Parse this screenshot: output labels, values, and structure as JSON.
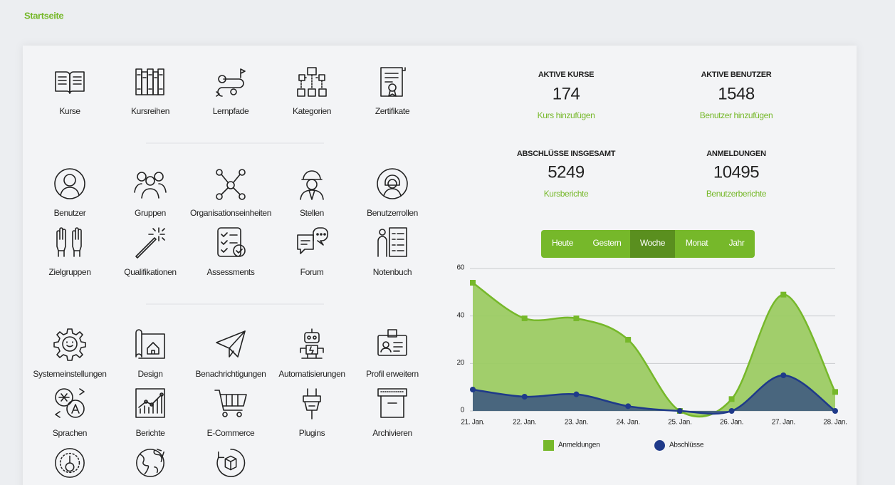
{
  "header": {
    "title": "Startseite"
  },
  "sections": [
    {
      "items": [
        "Kurse",
        "Kursreihen",
        "Lernpfade",
        "Kategorien",
        "Zertifikate"
      ]
    },
    {
      "items": [
        "Benutzer",
        "Gruppen",
        "Organisationseinheiten",
        "Stellen",
        "Benutzerrollen",
        "Zielgruppen",
        "Qualifikationen",
        "Assessments",
        "Forum",
        "Notenbuch"
      ]
    },
    {
      "items": [
        "Systemeinstellungen",
        "Design",
        "Benachrichtigungen",
        "Automatisierungen",
        "Profil erweitern",
        "Sprachen",
        "Berichte",
        "E-Commerce",
        "Plugins",
        "Archivieren"
      ]
    }
  ],
  "stats": [
    {
      "label": "AKTIVE KURSE",
      "value": 174,
      "link": "Kurs hinzufügen"
    },
    {
      "label": "AKTIVE BENUTZER",
      "value": 1548,
      "link": "Benutzer hinzufügen"
    },
    {
      "label": "ABSCHLÜSSE INSGESAMT",
      "value": 5249,
      "link": "Kursberichte"
    },
    {
      "label": "ANMELDUNGEN",
      "value": 10495,
      "link": "Benutzerberichte"
    }
  ],
  "periods": {
    "options": [
      "Heute",
      "Gestern",
      "Woche",
      "Monat",
      "Jahr"
    ],
    "active": 2
  },
  "chart_data": {
    "type": "area",
    "categories": [
      "21. Jan.",
      "22. Jan.",
      "23. Jan.",
      "24. Jan.",
      "25. Jan.",
      "26. Jan.",
      "27. Jan.",
      "28. Jan."
    ],
    "series": [
      {
        "name": "Anmeldungen",
        "color": "#76b82a",
        "fill": "#9ccb63",
        "marker": "square",
        "values": [
          54,
          39,
          39,
          30,
          0,
          5,
          49,
          8
        ]
      },
      {
        "name": "Abschlüsse",
        "color": "#1f3a8a",
        "fill": "#45607f",
        "marker": "circle",
        "values": [
          9,
          6,
          7,
          2,
          0,
          0,
          15,
          0
        ]
      }
    ],
    "ylim": [
      0,
      60
    ],
    "yticks": [
      0,
      20,
      40,
      60
    ],
    "grid": true
  }
}
